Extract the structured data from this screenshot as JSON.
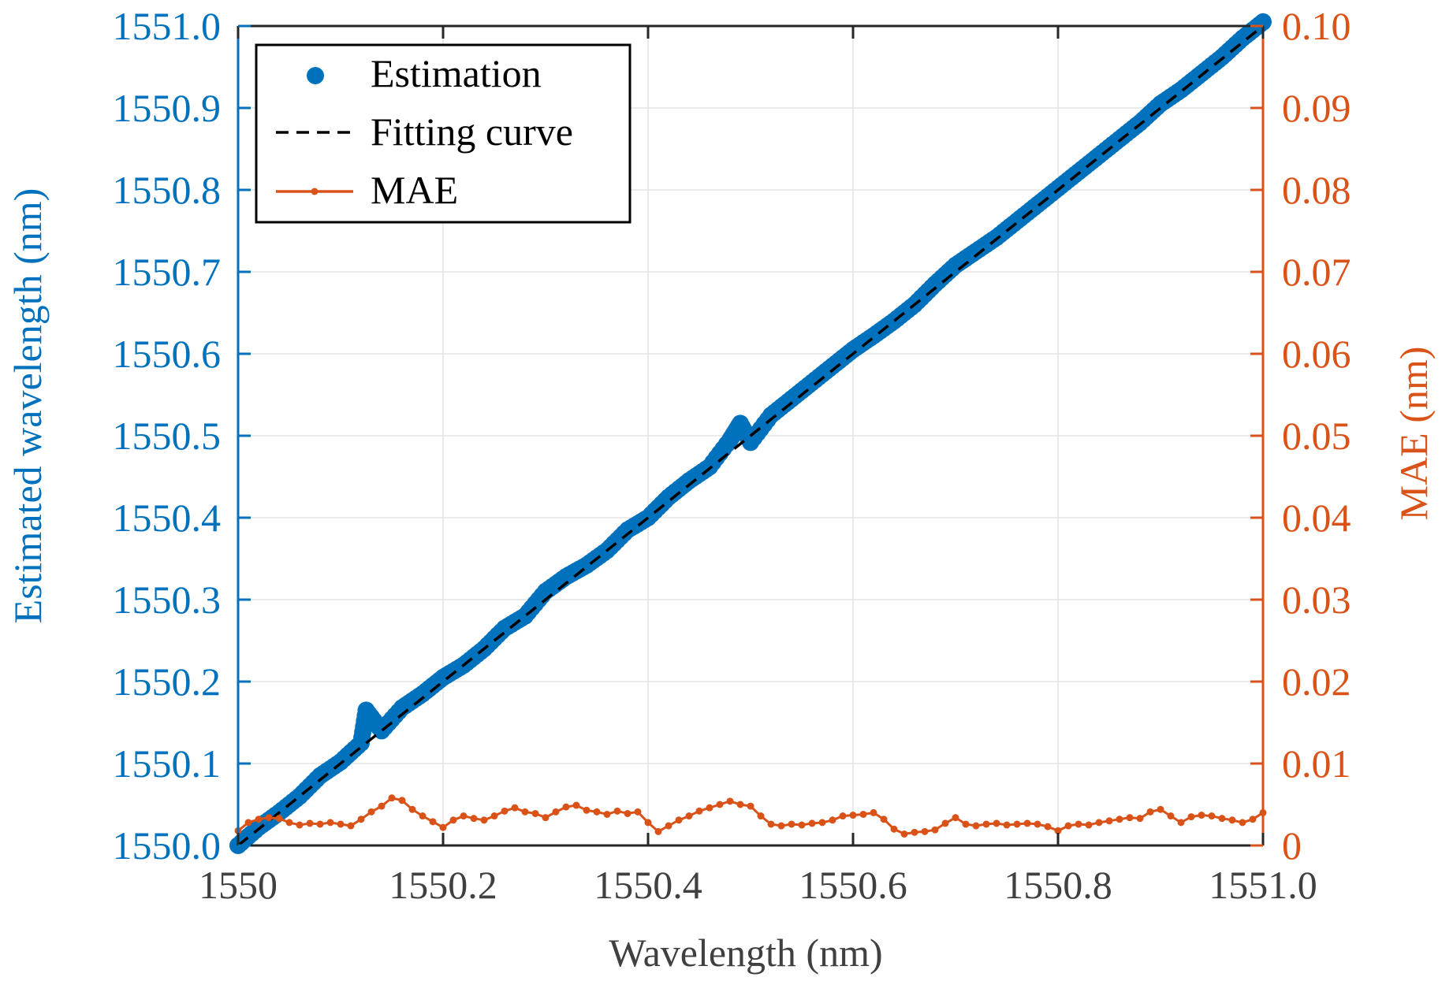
{
  "colors": {
    "left_axis": "#0072BD",
    "right_axis": "#D95319",
    "estimation": "#0072BD",
    "fit": "#000000",
    "mae": "#D95319",
    "grid": "#e3e3e3",
    "text": "#404040"
  },
  "chart_data": {
    "type": "scatter",
    "xlabel": "Wavelength (nm)",
    "ylabel_left": "Estimated wavelength (nm)",
    "ylabel_right": "MAE (nm)",
    "xlim": [
      1550.0,
      1551.0
    ],
    "ylim_left": [
      1550.0,
      1551.0
    ],
    "ylim_right": [
      0,
      0.1
    ],
    "x_ticks": [
      "1550",
      "1550.2",
      "1550.4",
      "1550.6",
      "1550.8",
      "1551.0"
    ],
    "y_left_ticks": [
      "1550.0",
      "1550.1",
      "1550.2",
      "1550.3",
      "1550.4",
      "1550.5",
      "1550.6",
      "1550.7",
      "1550.8",
      "1550.9",
      "1551.0"
    ],
    "y_right_ticks": [
      "0",
      "0.01",
      "0.02",
      "0.03",
      "0.04",
      "0.05",
      "0.06",
      "0.07",
      "0.08",
      "0.09",
      "0.10"
    ],
    "grid": true,
    "legend_position": "top-left",
    "legend": [
      "Estimation",
      "Fitting curve",
      "MAE"
    ],
    "series": [
      {
        "name": "Estimation",
        "axis": "left",
        "style": "markers",
        "x": [
          1550.0,
          1550.02,
          1550.04,
          1550.06,
          1550.08,
          1550.1,
          1550.12,
          1550.125,
          1550.14,
          1550.16,
          1550.18,
          1550.2,
          1550.22,
          1550.24,
          1550.26,
          1550.28,
          1550.3,
          1550.32,
          1550.34,
          1550.36,
          1550.38,
          1550.4,
          1550.42,
          1550.44,
          1550.46,
          1550.48,
          1550.49,
          1550.5,
          1550.52,
          1550.54,
          1550.56,
          1550.58,
          1550.6,
          1550.62,
          1550.64,
          1550.66,
          1550.68,
          1550.7,
          1550.72,
          1550.74,
          1550.76,
          1550.78,
          1550.8,
          1550.82,
          1550.84,
          1550.86,
          1550.88,
          1550.9,
          1550.92,
          1550.94,
          1550.96,
          1550.98,
          1551.0
        ],
        "y": [
          1550.0,
          1550.022,
          1550.04,
          1550.06,
          1550.085,
          1550.102,
          1550.125,
          1550.165,
          1550.14,
          1550.168,
          1550.185,
          1550.205,
          1550.22,
          1550.24,
          1550.265,
          1550.28,
          1550.31,
          1550.328,
          1550.342,
          1550.36,
          1550.385,
          1550.4,
          1550.425,
          1550.445,
          1550.462,
          1550.495,
          1550.515,
          1550.492,
          1550.525,
          1550.545,
          1550.565,
          1550.585,
          1550.605,
          1550.622,
          1550.64,
          1550.66,
          1550.685,
          1550.708,
          1550.725,
          1550.742,
          1550.762,
          1550.782,
          1550.802,
          1550.822,
          1550.842,
          1550.862,
          1550.882,
          1550.905,
          1550.922,
          1550.942,
          1550.962,
          1550.985,
          1551.005
        ]
      },
      {
        "name": "Fitting curve",
        "axis": "left",
        "style": "dashed",
        "x": [
          1550.0,
          1551.0
        ],
        "y": [
          1550.0,
          1551.0
        ]
      },
      {
        "name": "MAE",
        "axis": "right",
        "style": "line-markers",
        "x": [
          1550.0,
          1550.01,
          1550.02,
          1550.03,
          1550.04,
          1550.05,
          1550.06,
          1550.07,
          1550.08,
          1550.09,
          1550.1,
          1550.11,
          1550.12,
          1550.13,
          1550.14,
          1550.15,
          1550.16,
          1550.17,
          1550.18,
          1550.19,
          1550.2,
          1550.21,
          1550.22,
          1550.23,
          1550.24,
          1550.25,
          1550.26,
          1550.27,
          1550.28,
          1550.29,
          1550.3,
          1550.31,
          1550.32,
          1550.33,
          1550.34,
          1550.35,
          1550.36,
          1550.37,
          1550.38,
          1550.39,
          1550.4,
          1550.41,
          1550.42,
          1550.43,
          1550.44,
          1550.45,
          1550.46,
          1550.47,
          1550.48,
          1550.49,
          1550.5,
          1550.51,
          1550.52,
          1550.53,
          1550.54,
          1550.55,
          1550.56,
          1550.57,
          1550.58,
          1550.59,
          1550.6,
          1550.61,
          1550.62,
          1550.63,
          1550.64,
          1550.65,
          1550.66,
          1550.67,
          1550.68,
          1550.69,
          1550.7,
          1550.71,
          1550.72,
          1550.73,
          1550.74,
          1550.75,
          1550.76,
          1550.77,
          1550.78,
          1550.79,
          1550.8,
          1550.81,
          1550.82,
          1550.83,
          1550.84,
          1550.85,
          1550.86,
          1550.87,
          1550.88,
          1550.89,
          1550.9,
          1550.91,
          1550.92,
          1550.93,
          1550.94,
          1550.95,
          1550.96,
          1550.97,
          1550.98,
          1550.99,
          1551.0
        ],
        "y": [
          0.0018,
          0.0028,
          0.0032,
          0.0034,
          0.0033,
          0.0028,
          0.0025,
          0.0027,
          0.0026,
          0.0028,
          0.0026,
          0.0024,
          0.0032,
          0.0041,
          0.0048,
          0.0058,
          0.0055,
          0.0044,
          0.0036,
          0.0029,
          0.0022,
          0.0031,
          0.0036,
          0.0033,
          0.0031,
          0.0036,
          0.0042,
          0.0046,
          0.0041,
          0.0039,
          0.0034,
          0.0041,
          0.0047,
          0.0049,
          0.0043,
          0.0041,
          0.0038,
          0.0042,
          0.0039,
          0.0041,
          0.0028,
          0.0017,
          0.0024,
          0.0031,
          0.0036,
          0.0042,
          0.0046,
          0.005,
          0.0054,
          0.005,
          0.0048,
          0.0036,
          0.0026,
          0.0024,
          0.0026,
          0.0025,
          0.0027,
          0.0028,
          0.0031,
          0.0036,
          0.0037,
          0.0038,
          0.004,
          0.0032,
          0.002,
          0.0014,
          0.0016,
          0.0017,
          0.0019,
          0.0027,
          0.0034,
          0.0026,
          0.0024,
          0.0026,
          0.0027,
          0.0025,
          0.0026,
          0.0027,
          0.0026,
          0.0023,
          0.0018,
          0.0024,
          0.0026,
          0.0025,
          0.0028,
          0.003,
          0.0032,
          0.0034,
          0.0033,
          0.0041,
          0.0044,
          0.0036,
          0.0028,
          0.0035,
          0.0037,
          0.0036,
          0.0033,
          0.0031,
          0.0028,
          0.0032,
          0.004
        ]
      }
    ]
  }
}
